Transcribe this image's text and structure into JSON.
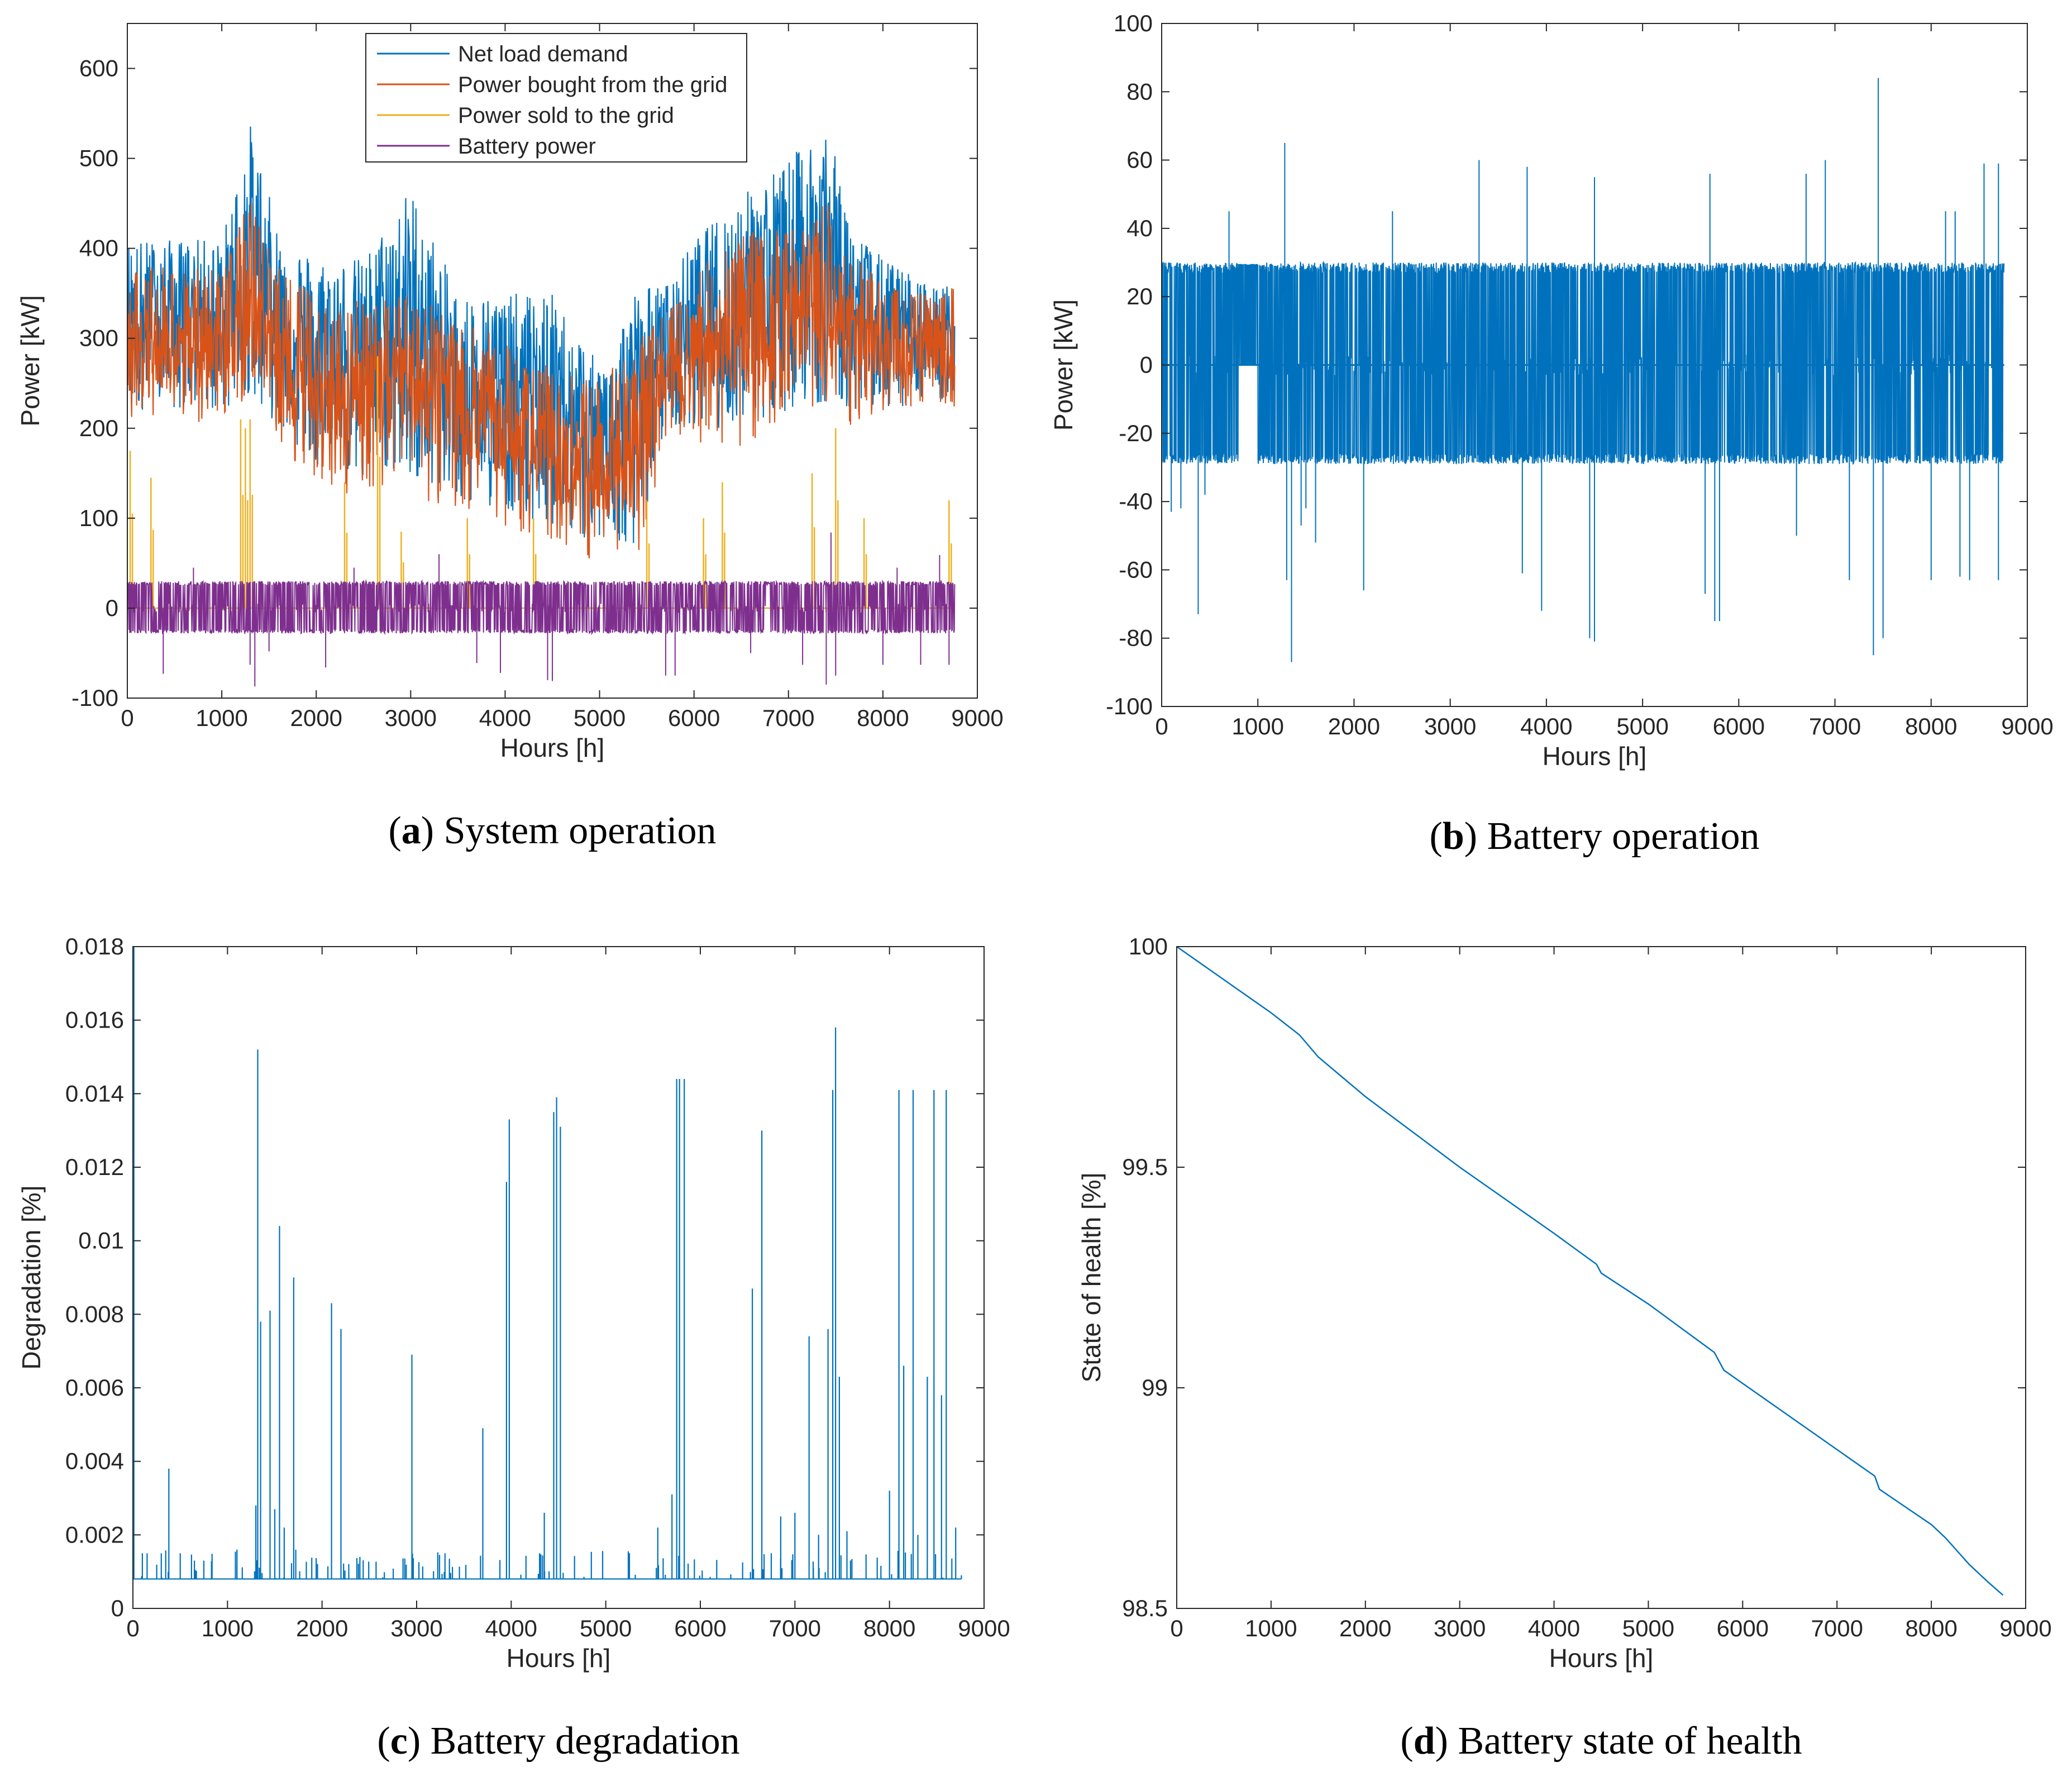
{
  "colors": {
    "blue": "#0072BD",
    "orange": "#D95319",
    "yellow": "#EDB120",
    "purple": "#7E2F8E",
    "axis": "#262626"
  },
  "chart_data": [
    {
      "id": "a",
      "type": "line",
      "caption_letter": "a",
      "caption_text": "System operation",
      "xlabel": "Hours [h]",
      "ylabel": "Power [kW]",
      "xlim": [
        0,
        9000
      ],
      "ylim": [
        -100,
        650
      ],
      "xticks": [
        0,
        1000,
        2000,
        3000,
        4000,
        5000,
        6000,
        7000,
        8000,
        9000
      ],
      "yticks": [
        -100,
        0,
        100,
        200,
        300,
        400,
        500,
        600
      ],
      "legend_position": "top-center",
      "series": [
        {
          "name": "Net load demand",
          "color": "blue",
          "data_range_x": [
            0,
            8760
          ]
        },
        {
          "name": "Power bought from the grid",
          "color": "orange",
          "data_range_x": [
            0,
            8760
          ]
        },
        {
          "name": "Power sold to the grid",
          "color": "yellow",
          "data_range_x": [
            0,
            8760
          ]
        },
        {
          "name": "Battery power",
          "color": "purple",
          "data_range_x": [
            0,
            8760
          ]
        }
      ],
      "envelope": {
        "x": [
          0,
          500,
          1000,
          1300,
          1600,
          2000,
          2500,
          3000,
          3500,
          4000,
          4500,
          5000,
          5400,
          5700,
          6000,
          6500,
          7000,
          7400,
          7700,
          8000,
          8500,
          8760
        ],
        "net_low": [
          220,
          220,
          215,
          240,
          200,
          160,
          140,
          150,
          120,
          110,
          90,
          70,
          70,
          200,
          200,
          200,
          220,
          230,
          220,
          220,
          230,
          230
        ],
        "net_high": [
          410,
          410,
          410,
          540,
          420,
          390,
          390,
          470,
          350,
          350,
          350,
          270,
          360,
          360,
          410,
          460,
          500,
          540,
          420,
          390,
          360,
          360
        ],
        "bought_low": [
          200,
          210,
          200,
          230,
          180,
          140,
          120,
          130,
          100,
          90,
          70,
          50,
          50,
          180,
          180,
          180,
          200,
          210,
          200,
          210,
          220,
          220
        ],
        "bought_high": [
          380,
          380,
          380,
          455,
          380,
          350,
          340,
          350,
          320,
          300,
          270,
          250,
          300,
          330,
          370,
          420,
          420,
          455,
          400,
          360,
          350,
          360
        ],
        "bought_mid": [
          280,
          290,
          290,
          320,
          270,
          250,
          240,
          250,
          220,
          200,
          170,
          150,
          170,
          260,
          280,
          300,
          320,
          340,
          300,
          290,
          290,
          290
        ],
        "sold_spikes": [
          [
            30,
            175
          ],
          [
            250,
            145
          ],
          [
            1200,
            210
          ],
          [
            1250,
            200
          ],
          [
            1300,
            210
          ],
          [
            2300,
            140
          ],
          [
            2650,
            280
          ],
          [
            2900,
            85
          ],
          [
            3600,
            100
          ],
          [
            4300,
            100
          ],
          [
            5500,
            120
          ],
          [
            6100,
            100
          ],
          [
            6300,
            140
          ],
          [
            7250,
            150
          ],
          [
            7500,
            200
          ],
          [
            7800,
            100
          ],
          [
            8700,
            120
          ]
        ],
        "battery_low": -28,
        "battery_high": 30,
        "battery_spikes": [
          [
            380,
            -73
          ],
          [
            700,
            45
          ],
          [
            1300,
            -63
          ],
          [
            1350,
            -87
          ],
          [
            1500,
            -48
          ],
          [
            2100,
            -66
          ],
          [
            2400,
            45
          ],
          [
            3300,
            60
          ],
          [
            3700,
            -61
          ],
          [
            3950,
            -72
          ],
          [
            4450,
            -80
          ],
          [
            4500,
            -81
          ],
          [
            5700,
            -75
          ],
          [
            5800,
            -75
          ],
          [
            6600,
            -50
          ],
          [
            7150,
            -63
          ],
          [
            7400,
            -85
          ],
          [
            7450,
            84
          ],
          [
            7500,
            -75
          ],
          [
            8000,
            -63
          ],
          [
            8150,
            45
          ],
          [
            8400,
            -63
          ],
          [
            8600,
            59
          ],
          [
            8700,
            -63
          ]
        ]
      }
    },
    {
      "id": "b",
      "type": "line",
      "caption_letter": "b",
      "caption_text": "Battery operation",
      "xlabel": "Hours [h]",
      "ylabel": "Power [kW]",
      "xlim": [
        0,
        9000
      ],
      "ylim": [
        -100,
        100
      ],
      "xticks": [
        0,
        1000,
        2000,
        3000,
        4000,
        5000,
        6000,
        7000,
        8000,
        9000
      ],
      "yticks": [
        -100,
        -80,
        -60,
        -40,
        -20,
        0,
        20,
        40,
        60,
        80,
        100
      ],
      "series": [
        {
          "name": "Battery power",
          "color": "blue"
        }
      ],
      "band": {
        "low": -29,
        "high": 30,
        "x_range": [
          0,
          8760
        ]
      },
      "spikes": [
        [
          100,
          -43
        ],
        [
          200,
          -42
        ],
        [
          380,
          -73
        ],
        [
          450,
          -38
        ],
        [
          700,
          45
        ],
        [
          1300,
          -63
        ],
        [
          1280,
          65
        ],
        [
          1350,
          -87
        ],
        [
          1450,
          -47
        ],
        [
          1500,
          -42
        ],
        [
          1600,
          -52
        ],
        [
          2100,
          -66
        ],
        [
          2400,
          45
        ],
        [
          3300,
          60
        ],
        [
          3750,
          -61
        ],
        [
          3800,
          58
        ],
        [
          3950,
          -72
        ],
        [
          4450,
          -80
        ],
        [
          4500,
          -81
        ],
        [
          4500,
          55
        ],
        [
          5650,
          -67
        ],
        [
          5700,
          56
        ],
        [
          5750,
          -75
        ],
        [
          5800,
          -75
        ],
        [
          6600,
          -50
        ],
        [
          6700,
          56
        ],
        [
          6900,
          60
        ],
        [
          7150,
          -63
        ],
        [
          7400,
          -85
        ],
        [
          7450,
          84
        ],
        [
          7500,
          -75
        ],
        [
          7500,
          -80
        ],
        [
          8000,
          -63
        ],
        [
          8150,
          45
        ],
        [
          8250,
          45
        ],
        [
          8300,
          -62
        ],
        [
          8400,
          -63
        ],
        [
          8550,
          59
        ],
        [
          8700,
          59
        ],
        [
          8700,
          -63
        ]
      ]
    },
    {
      "id": "c",
      "type": "line",
      "caption_letter": "c",
      "caption_text": "Battery degradation",
      "xlabel": "Hours [h]",
      "ylabel": "Degradation [%]",
      "xlim": [
        0,
        9000
      ],
      "ylim": [
        0,
        0.018
      ],
      "xticks": [
        0,
        1000,
        2000,
        3000,
        4000,
        5000,
        6000,
        7000,
        8000,
        9000
      ],
      "yticks": [
        "0",
        "0.002",
        "0.004",
        "0.006",
        "0.008",
        "0.01",
        "0.012",
        "0.014",
        "0.016",
        "0.018"
      ],
      "series": [
        {
          "name": "Degradation",
          "color": "blue"
        }
      ],
      "baseline": 0.0008,
      "spikes": [
        [
          10,
          0.018
        ],
        [
          100,
          0.0015
        ],
        [
          150,
          0.0015
        ],
        [
          300,
          0.0015
        ],
        [
          380,
          0.0038
        ],
        [
          500,
          0.0015
        ],
        [
          650,
          0.0013
        ],
        [
          750,
          0.0013
        ],
        [
          1100,
          0.0016
        ],
        [
          1300,
          0.0028
        ],
        [
          1320,
          0.0152
        ],
        [
          1350,
          0.0078
        ],
        [
          1450,
          0.0081
        ],
        [
          1500,
          0.0027
        ],
        [
          1550,
          0.0104
        ],
        [
          1600,
          0.0022
        ],
        [
          1700,
          0.009
        ],
        [
          2100,
          0.0083
        ],
        [
          2200,
          0.0076
        ],
        [
          2400,
          0.0014
        ],
        [
          2950,
          0.0069
        ],
        [
          3300,
          0.0015
        ],
        [
          3700,
          0.0049
        ],
        [
          3950,
          0.0116
        ],
        [
          3980,
          0.0133
        ],
        [
          4300,
          0.0015
        ],
        [
          4350,
          0.0026
        ],
        [
          4450,
          0.0135
        ],
        [
          4480,
          0.0139
        ],
        [
          4520,
          0.0131
        ],
        [
          5250,
          0.0015
        ],
        [
          5550,
          0.0022
        ],
        [
          5700,
          0.0031
        ],
        [
          5750,
          0.0144
        ],
        [
          5780,
          0.0144
        ],
        [
          5830,
          0.0144
        ],
        [
          6550,
          0.0087
        ],
        [
          6650,
          0.013
        ],
        [
          6750,
          0.0015
        ],
        [
          6850,
          0.0025
        ],
        [
          7000,
          0.0026
        ],
        [
          7150,
          0.0074
        ],
        [
          7250,
          0.002
        ],
        [
          7350,
          0.0076
        ],
        [
          7400,
          0.0141
        ],
        [
          7430,
          0.0158
        ],
        [
          7470,
          0.0063
        ],
        [
          7550,
          0.0021
        ],
        [
          8000,
          0.0032
        ],
        [
          8100,
          0.0141
        ],
        [
          8150,
          0.0066
        ],
        [
          8250,
          0.0141
        ],
        [
          8300,
          0.002
        ],
        [
          8400,
          0.0063
        ],
        [
          8470,
          0.0141
        ],
        [
          8550,
          0.0058
        ],
        [
          8600,
          0.0141
        ],
        [
          8700,
          0.0022
        ],
        [
          8760,
          0.0009
        ]
      ]
    },
    {
      "id": "d",
      "type": "line",
      "caption_letter": "d",
      "caption_text": "Battery state of health",
      "xlabel": "Hours [h]",
      "ylabel": "State of health [%]",
      "xlim": [
        0,
        9000
      ],
      "ylim": [
        98.5,
        100
      ],
      "xticks": [
        0,
        1000,
        2000,
        3000,
        4000,
        5000,
        6000,
        7000,
        8000,
        9000
      ],
      "yticks": [
        "98.5",
        "99",
        "99.5",
        "100"
      ],
      "series": [
        {
          "name": "State of health",
          "color": "blue",
          "x": [
            0,
            1000,
            1300,
            1500,
            2000,
            3000,
            4000,
            4450,
            4500,
            5000,
            5700,
            5800,
            6000,
            7000,
            7400,
            7450,
            8000,
            8150,
            8400,
            8600,
            8760
          ],
          "y": [
            100.0,
            99.85,
            99.8,
            99.75,
            99.66,
            99.5,
            99.35,
            99.28,
            99.26,
            99.19,
            99.08,
            99.04,
            99.01,
            98.86,
            98.8,
            98.77,
            98.69,
            98.66,
            98.6,
            98.56,
            98.53
          ]
        }
      ]
    }
  ]
}
